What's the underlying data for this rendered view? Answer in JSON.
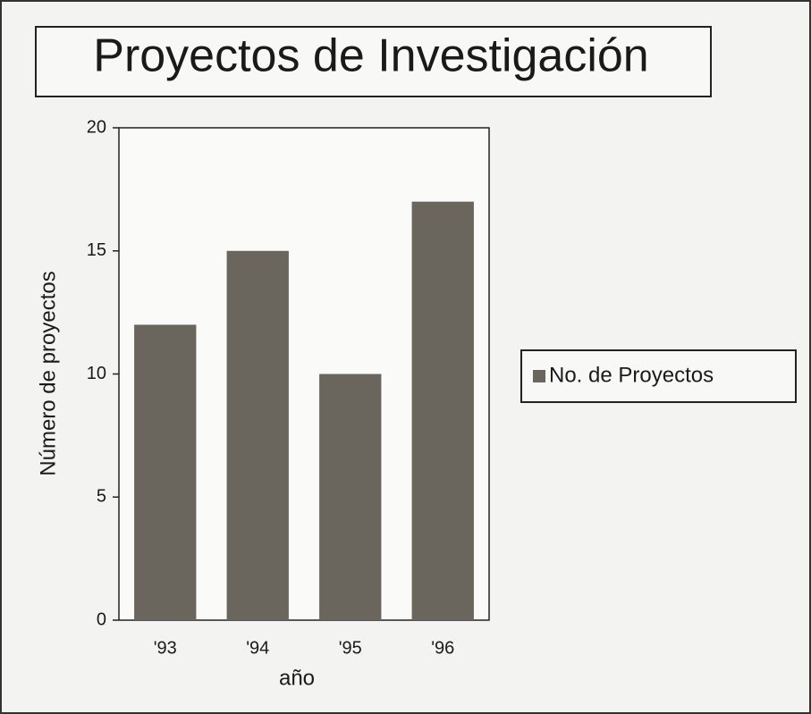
{
  "chart_data": {
    "type": "bar",
    "title": "Proyectos de Investigación",
    "y_label": "Número de proyectos",
    "x_label": "año",
    "categories": [
      "'93",
      "'94",
      "'95",
      "'96"
    ],
    "series": [
      {
        "name": "No. de Proyectos",
        "color": "#6a665e",
        "values": [
          12,
          15,
          10,
          17
        ]
      }
    ],
    "ylim": [
      0,
      20
    ],
    "yticks": [
      0,
      5,
      10,
      15,
      20
    ],
    "grid": false,
    "legend": "right"
  }
}
